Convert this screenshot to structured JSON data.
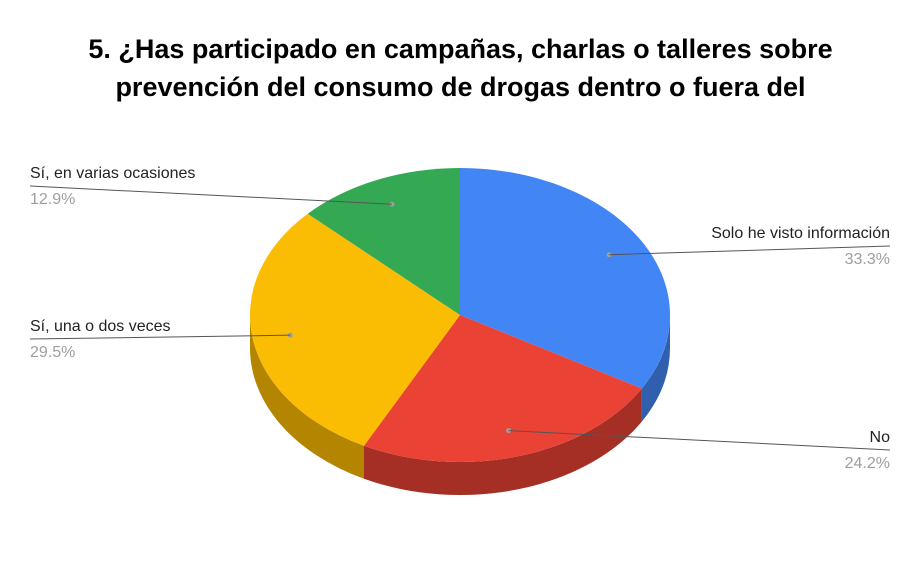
{
  "chart_data": {
    "type": "pie",
    "title_lines": [
      "5. ¿Has participado en campañas, charlas o talleres sobre",
      "prevención del consumo de drogas dentro o fuera del"
    ],
    "slices": [
      {
        "label": "Solo he visto información",
        "value": 33.3,
        "value_label": "33.3%",
        "color": "#4285f4",
        "side_color": "#2f5fad"
      },
      {
        "label": "No",
        "value": 24.2,
        "value_label": "24.2%",
        "color": "#ea4335",
        "side_color": "#a52f25"
      },
      {
        "label": "Sí, una o dos veces",
        "value": 29.5,
        "value_label": "29.5%",
        "color": "#fbbc04",
        "side_color": "#b38500"
      },
      {
        "label": "Sí, en varias ocasiones",
        "value": 12.9,
        "value_label": "12.9%",
        "color": "#34a853",
        "side_color": "#25773b"
      }
    ],
    "style": "3d-pie",
    "legend": "none"
  }
}
